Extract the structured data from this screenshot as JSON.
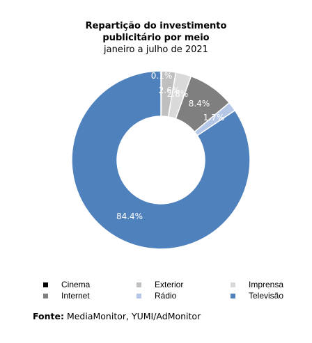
{
  "chart_data": {
    "type": "pie",
    "title": "Repartição do investimento publicitário por meio",
    "title_line1": "Repartição do investimento",
    "title_line2": "publicitário por meio",
    "subtitle": "janeiro a julho de 2021",
    "donut": true,
    "categories": [
      "Cinema",
      "Exterior",
      "Imprensa",
      "Internet",
      "Rádio",
      "Televisão"
    ],
    "values": [
      0.1,
      2.6,
      2.8,
      8.4,
      1.7,
      84.4
    ],
    "labels": [
      "0.1%",
      "2.6%",
      "2.8%",
      "8.4%",
      "1.7%",
      "84.4%"
    ],
    "colors": [
      "#000000",
      "#bfbfbf",
      "#d9d9d9",
      "#7f7f7f",
      "#b4c7e7",
      "#4f81bd"
    ],
    "legend_position": "bottom"
  },
  "source": {
    "label": "Fonte:",
    "text": " MediaMonitor, YUMI/AdMonitor"
  }
}
